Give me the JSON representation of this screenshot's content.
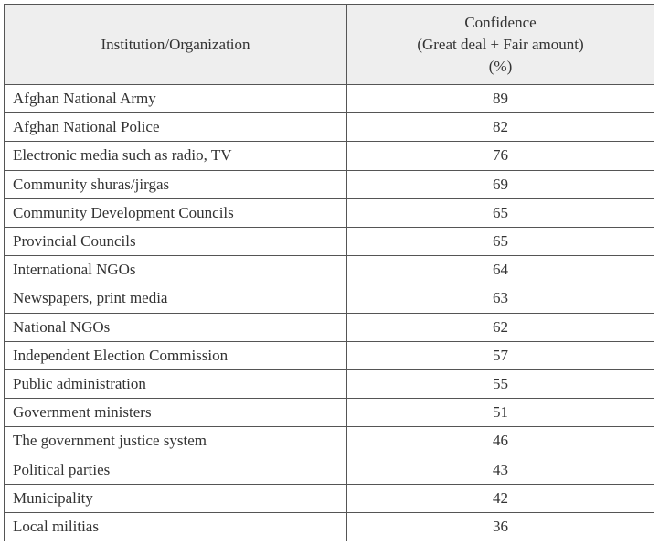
{
  "table": {
    "header": {
      "institution": "Institution/Organization",
      "confidence": [
        "Confidence",
        "(Great deal + Fair amount)",
        "(%)"
      ]
    },
    "rows": [
      [
        "Afghan National Army",
        89
      ],
      [
        "Afghan National Police",
        82
      ],
      [
        "Electronic media such as radio, TV",
        76
      ],
      [
        "Community shuras/jirgas",
        69
      ],
      [
        "Community Development Councils",
        65
      ],
      [
        "Provincial Councils",
        65
      ],
      [
        "International NGOs",
        64
      ],
      [
        "Newspapers, print media",
        63
      ],
      [
        "National NGOs",
        62
      ],
      [
        "Independent Election Commission",
        57
      ],
      [
        "Public administration",
        55
      ],
      [
        "Government ministers",
        51
      ],
      [
        "The government justice system",
        46
      ],
      [
        "Political parties",
        43
      ],
      [
        "Municipality",
        42
      ],
      [
        "Local militias",
        36
      ]
    ]
  }
}
